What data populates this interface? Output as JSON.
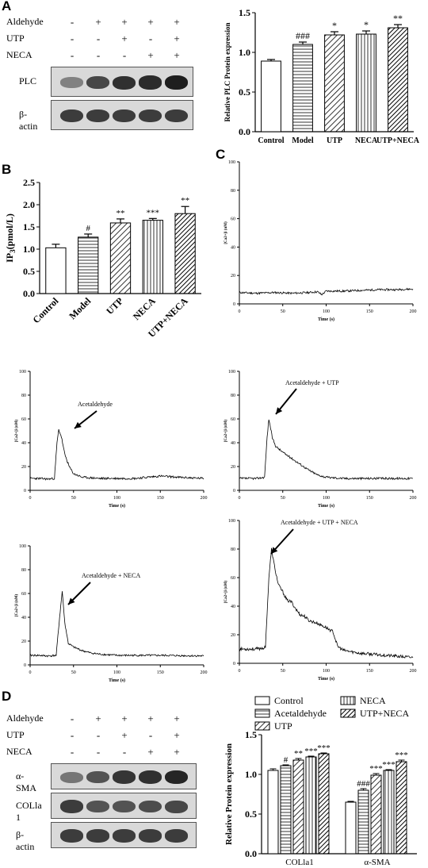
{
  "panel_letters": [
    "A",
    "B",
    "C",
    "D"
  ],
  "blot_A": {
    "rows": [
      {
        "label": "Aldehyde",
        "signs": [
          "-",
          "+",
          "+",
          "+",
          "+"
        ]
      },
      {
        "label": "UTP",
        "signs": [
          "-",
          "-",
          "+",
          "-",
          "+"
        ]
      },
      {
        "label": "NECA",
        "signs": [
          "-",
          "-",
          "-",
          "+",
          "+"
        ]
      }
    ],
    "bands": [
      {
        "label": "PLC",
        "intensity": [
          0.55,
          0.8,
          0.9,
          0.92,
          0.98
        ]
      },
      {
        "label": "β-actin",
        "intensity": [
          0.85,
          0.85,
          0.85,
          0.85,
          0.85
        ]
      }
    ]
  },
  "blot_D": {
    "rows": [
      {
        "label": "Aldehyde",
        "signs": [
          "-",
          "+",
          "+",
          "+",
          "+"
        ]
      },
      {
        "label": "UTP",
        "signs": [
          "-",
          "-",
          "+",
          "-",
          "+"
        ]
      },
      {
        "label": "NECA",
        "signs": [
          "-",
          "-",
          "-",
          "+",
          "+"
        ]
      }
    ],
    "bands": [
      {
        "label": "α-SMA",
        "intensity": [
          0.6,
          0.75,
          0.88,
          0.9,
          0.95
        ]
      },
      {
        "label": "COLla 1",
        "intensity": [
          0.85,
          0.75,
          0.75,
          0.78,
          0.8
        ]
      },
      {
        "label": "β-actin",
        "intensity": [
          0.85,
          0.85,
          0.85,
          0.85,
          0.85
        ]
      }
    ]
  },
  "chart_data": [
    {
      "id": "A",
      "type": "bar",
      "ylabel": "Relative PLC Protein expression",
      "ylim": [
        0,
        1.5
      ],
      "yticks": [
        "0.0",
        "0.5",
        "1.0",
        "1.5"
      ],
      "categories": [
        "Control",
        "Model",
        "UTP",
        "NECA",
        "UTP+NECA"
      ],
      "values": [
        0.89,
        1.1,
        1.22,
        1.23,
        1.31
      ],
      "errors": [
        0.02,
        0.03,
        0.04,
        0.04,
        0.04
      ],
      "annotations": [
        "",
        "###",
        "*",
        "*",
        "**"
      ],
      "patterns": [
        "blank",
        "hlines",
        "diag",
        "vlines",
        "diag2"
      ]
    },
    {
      "id": "B",
      "type": "bar",
      "ylabel": "IP3(pmol/L)",
      "ylim": [
        0,
        2.5
      ],
      "yticks": [
        "0.0",
        "0.5",
        "1.0",
        "1.5",
        "2.0",
        "2.5"
      ],
      "categories": [
        "Control",
        "Model",
        "UTP",
        "NECA",
        "UTP+NECA"
      ],
      "values": [
        1.03,
        1.27,
        1.59,
        1.65,
        1.8
      ],
      "errors": [
        0.08,
        0.07,
        0.09,
        0.04,
        0.16
      ],
      "annotations": [
        "",
        "#",
        "**",
        "***",
        "**"
      ],
      "patterns": [
        "blank",
        "hlines",
        "diag",
        "vlines",
        "diag2"
      ]
    },
    {
      "id": "C-control",
      "type": "line",
      "ylabel": "[Ca2+]i (nM)",
      "xlabel": "Time (s)",
      "xlim": [
        0,
        200
      ],
      "ylim": [
        0,
        100
      ],
      "xticks": [
        "0",
        "50",
        "100",
        "150",
        "200"
      ],
      "yticks": [
        "0",
        "20",
        "40",
        "60",
        "80",
        "100"
      ],
      "annotation": "",
      "x": [
        0,
        20,
        40,
        60,
        80,
        90,
        95,
        100,
        120,
        140,
        160,
        180,
        200
      ],
      "y": [
        8,
        7.5,
        8,
        7.5,
        8,
        8.5,
        6.5,
        9,
        9,
        9.5,
        10,
        10,
        10.5
      ]
    },
    {
      "id": "C-acetaldehyde",
      "type": "line",
      "ylabel": "[Ca2+]i (nM)",
      "xlabel": "Time (s)",
      "xlim": [
        0,
        200
      ],
      "ylim": [
        0,
        100
      ],
      "xticks": [
        "0",
        "50",
        "100",
        "150",
        "200"
      ],
      "yticks": [
        "0",
        "20",
        "40",
        "60",
        "80",
        "100"
      ],
      "annotation": "Acetaldehyde",
      "x": [
        0,
        10,
        20,
        28,
        31,
        33,
        36,
        40,
        45,
        50,
        60,
        80,
        100,
        120,
        150,
        170,
        200
      ],
      "y": [
        10,
        10,
        9.5,
        10,
        40,
        51,
        45,
        30,
        20,
        14,
        11,
        10,
        10,
        10,
        12,
        11,
        10
      ]
    },
    {
      "id": "C-acetaldehyde-utp",
      "type": "line",
      "ylabel": "[Ca2+]i (nM)",
      "xlabel": "Time (s)",
      "xlim": [
        0,
        200
      ],
      "ylim": [
        0,
        100
      ],
      "xticks": [
        "0",
        "50",
        "100",
        "150",
        "200"
      ],
      "yticks": [
        "0",
        "20",
        "40",
        "60",
        "80",
        "100"
      ],
      "annotation": "Acetaldehyde + UTP",
      "x": [
        0,
        10,
        20,
        29,
        32,
        34,
        38,
        42,
        50,
        60,
        70,
        80,
        90,
        100,
        120,
        150,
        200
      ],
      "y": [
        10,
        10,
        10,
        11,
        45,
        60,
        44,
        37,
        32,
        27,
        22,
        17,
        13,
        11,
        10,
        10,
        10
      ]
    },
    {
      "id": "C-acetaldehyde-neca",
      "type": "line",
      "ylabel": "[Ca2+]i (nM)",
      "xlabel": "Time (s)",
      "xlim": [
        0,
        200
      ],
      "ylim": [
        0,
        100
      ],
      "xticks": [
        "0",
        "50",
        "100",
        "150",
        "200"
      ],
      "yticks": [
        "0",
        "20",
        "40",
        "60",
        "80",
        "100"
      ],
      "annotation": "Acetaldehyde + NECA",
      "x": [
        0,
        10,
        20,
        30,
        34,
        37,
        40,
        44,
        50,
        60,
        70,
        80,
        100,
        120,
        150,
        200
      ],
      "y": [
        8,
        8,
        7.5,
        8,
        40,
        62,
        35,
        18,
        15,
        12,
        10,
        9,
        8,
        8,
        8,
        7.5
      ]
    },
    {
      "id": "C-acetaldehyde-utp-neca",
      "type": "line",
      "ylabel": "[Ca2+]i (nM)",
      "xlabel": "Time (s)",
      "xlim": [
        0,
        200
      ],
      "ylim": [
        0,
        100
      ],
      "xticks": [
        "0",
        "50",
        "100",
        "150",
        "200"
      ],
      "yticks": [
        "0",
        "20",
        "40",
        "60",
        "80",
        "100"
      ],
      "annotation": "Acetaldehyde + UTP + NECA",
      "x": [
        0,
        10,
        20,
        30,
        34,
        37,
        41,
        45,
        50,
        55,
        60,
        65,
        70,
        75,
        80,
        90,
        100,
        108,
        113,
        120,
        140,
        160,
        180,
        200
      ],
      "y": [
        10,
        10,
        10,
        11,
        60,
        80,
        66,
        55,
        50,
        44,
        43,
        38,
        34,
        33,
        30,
        28,
        25,
        22,
        12,
        9,
        7,
        6,
        5,
        4
      ]
    },
    {
      "id": "D",
      "type": "bar",
      "ylabel": "Relative Protein expression",
      "ylim": [
        0,
        1.5
      ],
      "yticks": [
        "0.0",
        "0.5",
        "1.0",
        "1.5"
      ],
      "groups": [
        "COLla1",
        "α-SMA"
      ],
      "series": [
        {
          "name": "Control",
          "pattern": "blank",
          "values": [
            1.05,
            0.65
          ],
          "errors": [
            0.02,
            0.01
          ],
          "annotations": [
            "",
            ""
          ]
        },
        {
          "name": "Acetaldehyde",
          "pattern": "hlines",
          "values": [
            1.11,
            0.8
          ],
          "errors": [
            0.01,
            0.02
          ],
          "annotations": [
            "#",
            "###"
          ]
        },
        {
          "name": "UTP",
          "pattern": "diag",
          "values": [
            1.18,
            0.99
          ],
          "errors": [
            0.02,
            0.02
          ],
          "annotations": [
            "**",
            "***"
          ]
        },
        {
          "name": "NECA",
          "pattern": "vlines",
          "values": [
            1.22,
            1.05
          ],
          "errors": [
            0.01,
            0.01
          ],
          "annotations": [
            "***",
            "***"
          ]
        },
        {
          "name": "UTP+NECA",
          "pattern": "diag2",
          "values": [
            1.26,
            1.16
          ],
          "errors": [
            0.01,
            0.02
          ],
          "annotations": [
            "***",
            "***"
          ]
        }
      ]
    }
  ]
}
